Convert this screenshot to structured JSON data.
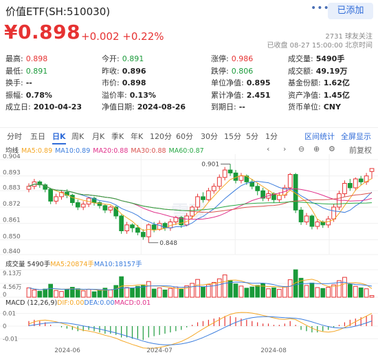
{
  "header": {
    "title": "价值ETF(SH:510030)",
    "more": "•••",
    "add_label": "已添加"
  },
  "quote": {
    "price": "¥0.898",
    "change": "+0.002 +0.22%",
    "followers": "2731 球友关注",
    "status": "已收盘 08-27 15:00:00 北京时间"
  },
  "stats": [
    [
      {
        "l": "最高:",
        "v": "0.898",
        "c": "red"
      },
      {
        "l": "今开:",
        "v": "0.891",
        "c": "green"
      },
      {
        "l": "涨停:",
        "v": "0.986",
        "c": "red"
      },
      {
        "l": "成交量:",
        "v": "5490手",
        "c": "val"
      }
    ],
    [
      {
        "l": "最低:",
        "v": "0.891",
        "c": "green"
      },
      {
        "l": "昨收:",
        "v": "0.896",
        "c": "val"
      },
      {
        "l": "跌停:",
        "v": "0.806",
        "c": "green"
      },
      {
        "l": "成交额:",
        "v": "49.19万",
        "c": "val"
      }
    ],
    [
      {
        "l": "换手:",
        "v": "--",
        "c": "val"
      },
      {
        "l": "市价:",
        "v": "0.898",
        "c": "val"
      },
      {
        "l": "单位净值:",
        "v": "0.895",
        "c": "val"
      },
      {
        "l": "基金份额:",
        "v": "1.62亿",
        "c": "val"
      }
    ],
    [
      {
        "l": "振幅:",
        "v": "0.78%",
        "c": "val"
      },
      {
        "l": "溢价率:",
        "v": "0.13%",
        "c": "val"
      },
      {
        "l": "累计净值:",
        "v": "2.451",
        "c": "val"
      },
      {
        "l": "资产净值:",
        "v": "1.45亿",
        "c": "val"
      }
    ],
    [
      {
        "l": "成立日:",
        "v": "2010-04-23",
        "c": "val"
      },
      {
        "l": "净值日期:",
        "v": "2024-08-26",
        "c": "val"
      },
      {
        "l": "到期日:",
        "v": "--",
        "c": "val"
      },
      {
        "l": "货币单位:",
        "v": "CNY",
        "c": "val"
      }
    ]
  ],
  "tabs": [
    "分时",
    "五日",
    "日K",
    "周K",
    "月K",
    "季K",
    "年K",
    "120分",
    "60分",
    "30分",
    "15分",
    "5分",
    "1分"
  ],
  "active_tab": "日K",
  "tab_links": [
    "区间统计",
    "全屏显示"
  ],
  "ma_legend": [
    {
      "label": "均线",
      "color": "#333333"
    },
    {
      "label": "MA5:0.89",
      "color": "#f5a623"
    },
    {
      "label": "MA10:0.89",
      "color": "#3b7ddd"
    },
    {
      "label": "MA20:0.88",
      "color": "#e0308a"
    },
    {
      "label": "MA30:0.88",
      "color": "#d9534f"
    },
    {
      "label": "MA60:0.87",
      "color": "#27a844"
    }
  ],
  "controls": {
    "prev": "‹",
    "next": "›",
    "zoom_out": "⊖",
    "zoom_in": "⊕",
    "settings": "⚙",
    "adjust": "前复权"
  },
  "vol_legend": [
    {
      "label": "成交量 5490手",
      "color": "#333333"
    },
    {
      "label": "MA5:20874手",
      "color": "#f5a623"
    },
    {
      "label": "MA10:18157手",
      "color": "#3b7ddd"
    }
  ],
  "macd_legend": [
    {
      "label": "MACD (12,26,9)",
      "color": "#333333"
    },
    {
      "label": "DIF:0.00",
      "color": "#f5a623"
    },
    {
      "label": "DEA:0.00",
      "color": "#3b7ddd"
    },
    {
      "label": "MACD:0.01",
      "color": "#e0308a"
    }
  ],
  "watermark": "雪球",
  "colors": {
    "up": "#e63232",
    "down": "#1a9a3a",
    "accent": "#2f6bd8"
  },
  "chart_data": {
    "type": "candlestick",
    "price_axis_ticks": [
      "0.904",
      "0.893",
      "0.883",
      "0.872",
      "0.861",
      "0.850",
      "0.840"
    ],
    "ylim": [
      0.84,
      0.904
    ],
    "high_annotation": "0.901",
    "low_annotation": "0.848",
    "x_ticks": [
      "2024-06",
      "2024-07",
      "2024-08"
    ],
    "volume_axis_ticks": [
      "9.13万",
      "4.56万",
      "0"
    ],
    "macd_axis_ticks": [
      "0.01",
      "0",
      "-0.01"
    ],
    "candles": [
      [
        0.884,
        0.886,
        0.888,
        0.882
      ],
      [
        0.886,
        0.889,
        0.891,
        0.884
      ],
      [
        0.889,
        0.887,
        0.89,
        0.885
      ],
      [
        0.887,
        0.884,
        0.888,
        0.882
      ],
      [
        0.884,
        0.876,
        0.885,
        0.874
      ],
      [
        0.876,
        0.879,
        0.881,
        0.874
      ],
      [
        0.879,
        0.882,
        0.883,
        0.877
      ],
      [
        0.882,
        0.88,
        0.884,
        0.878
      ],
      [
        0.88,
        0.875,
        0.881,
        0.873
      ],
      [
        0.875,
        0.872,
        0.877,
        0.87
      ],
      [
        0.872,
        0.874,
        0.876,
        0.87
      ],
      [
        0.874,
        0.878,
        0.879,
        0.872
      ],
      [
        0.878,
        0.875,
        0.879,
        0.873
      ],
      [
        0.875,
        0.873,
        0.876,
        0.871
      ],
      [
        0.873,
        0.87,
        0.874,
        0.868
      ],
      [
        0.87,
        0.872,
        0.873,
        0.868
      ],
      [
        0.872,
        0.866,
        0.873,
        0.864
      ],
      [
        0.866,
        0.856,
        0.867,
        0.854
      ],
      [
        0.856,
        0.86,
        0.862,
        0.854
      ],
      [
        0.86,
        0.858,
        0.861,
        0.855
      ],
      [
        0.858,
        0.855,
        0.86,
        0.853
      ],
      [
        0.855,
        0.852,
        0.857,
        0.85
      ],
      [
        0.852,
        0.86,
        0.861,
        0.848
      ],
      [
        0.86,
        0.857,
        0.862,
        0.855
      ],
      [
        0.857,
        0.861,
        0.863,
        0.856
      ],
      [
        0.861,
        0.858,
        0.862,
        0.856
      ],
      [
        0.858,
        0.862,
        0.864,
        0.856
      ],
      [
        0.862,
        0.865,
        0.866,
        0.86
      ],
      [
        0.865,
        0.86,
        0.866,
        0.858
      ],
      [
        0.86,
        0.866,
        0.868,
        0.859
      ],
      [
        0.866,
        0.872,
        0.873,
        0.864
      ],
      [
        0.872,
        0.879,
        0.881,
        0.87
      ],
      [
        0.879,
        0.877,
        0.882,
        0.875
      ],
      [
        0.877,
        0.883,
        0.885,
        0.876
      ],
      [
        0.883,
        0.886,
        0.888,
        0.881
      ],
      [
        0.886,
        0.892,
        0.894,
        0.884
      ],
      [
        0.892,
        0.897,
        0.899,
        0.89
      ],
      [
        0.897,
        0.895,
        0.901,
        0.893
      ],
      [
        0.895,
        0.89,
        0.897,
        0.888
      ],
      [
        0.89,
        0.893,
        0.895,
        0.888
      ],
      [
        0.893,
        0.889,
        0.894,
        0.887
      ],
      [
        0.889,
        0.886,
        0.891,
        0.884
      ],
      [
        0.886,
        0.883,
        0.888,
        0.88
      ],
      [
        0.883,
        0.878,
        0.885,
        0.876
      ],
      [
        0.878,
        0.881,
        0.883,
        0.876
      ],
      [
        0.881,
        0.877,
        0.882,
        0.875
      ],
      [
        0.877,
        0.88,
        0.882,
        0.875
      ],
      [
        0.88,
        0.885,
        0.887,
        0.878
      ],
      [
        0.885,
        0.894,
        0.895,
        0.883
      ],
      [
        0.894,
        0.87,
        0.895,
        0.868
      ],
      [
        0.87,
        0.862,
        0.872,
        0.86
      ],
      [
        0.862,
        0.866,
        0.868,
        0.86
      ],
      [
        0.866,
        0.859,
        0.867,
        0.857
      ],
      [
        0.859,
        0.862,
        0.864,
        0.857
      ],
      [
        0.862,
        0.86,
        0.863,
        0.858
      ],
      [
        0.86,
        0.864,
        0.866,
        0.858
      ],
      [
        0.864,
        0.872,
        0.874,
        0.862
      ],
      [
        0.872,
        0.881,
        0.883,
        0.87
      ],
      [
        0.881,
        0.888,
        0.89,
        0.879
      ],
      [
        0.888,
        0.885,
        0.891,
        0.883
      ],
      [
        0.885,
        0.891,
        0.892,
        0.883
      ],
      [
        0.891,
        0.889,
        0.893,
        0.887
      ],
      [
        0.889,
        0.893,
        0.895,
        0.887
      ],
      [
        0.896,
        0.898,
        0.898,
        0.891
      ]
    ],
    "volumes": [
      3.1,
      2.4,
      2.0,
      2.7,
      4.3,
      2.2,
      1.9,
      2.5,
      3.3,
      2.8,
      2.1,
      2.6,
      1.8,
      2.2,
      3.0,
      2.4,
      3.9,
      6.8,
      3.2,
      2.9,
      3.6,
      4.1,
      5.2,
      2.7,
      3.1,
      2.4,
      2.9,
      3.4,
      2.6,
      3.8,
      4.6,
      5.9,
      3.3,
      4.2,
      4.9,
      6.1,
      7.4,
      5.6,
      4.4,
      3.7,
      3.0,
      3.4,
      3.9,
      4.5,
      2.8,
      3.1,
      2.6,
      3.5,
      5.8,
      9.1,
      6.3,
      3.9,
      4.7,
      3.2,
      2.9,
      3.3,
      4.1,
      5.5,
      6.6,
      4.3,
      3.6,
      3.1,
      2.8,
      0.55
    ],
    "macd": [
      0.004,
      0.005,
      0.004,
      0.003,
      0.001,
      0.0,
      -0.001,
      -0.002,
      -0.003,
      -0.004,
      -0.004,
      -0.003,
      -0.004,
      -0.005,
      -0.006,
      -0.006,
      -0.007,
      -0.009,
      -0.009,
      -0.01,
      -0.01,
      -0.011,
      -0.009,
      -0.008,
      -0.007,
      -0.006,
      -0.005,
      -0.004,
      -0.003,
      -0.001,
      0.001,
      0.003,
      0.004,
      0.005,
      0.006,
      0.007,
      0.008,
      0.008,
      0.007,
      0.006,
      0.005,
      0.004,
      0.003,
      0.002,
      0.002,
      0.001,
      0.001,
      0.002,
      0.004,
      0.001,
      -0.003,
      -0.004,
      -0.005,
      -0.005,
      -0.004,
      -0.003,
      -0.001,
      0.001,
      0.003,
      0.005,
      0.006,
      0.007,
      0.008,
      0.009
    ]
  }
}
